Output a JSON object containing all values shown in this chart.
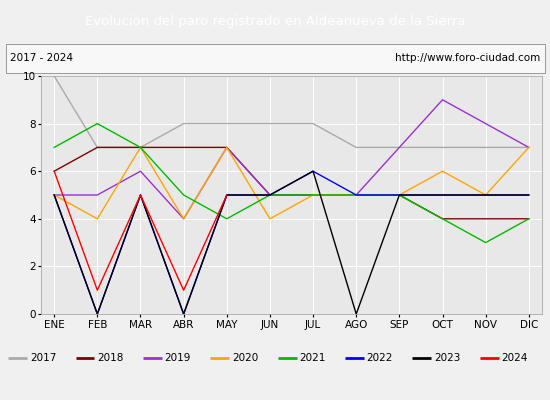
{
  "title": "Evolucion del paro registrado en Aldeanueva de la Sierra",
  "title_color": "#ffffff",
  "title_bg_color": "#5b9bd5",
  "subtitle_left": "2017 - 2024",
  "subtitle_right": "http://www.foro-ciudad.com",
  "months": [
    "ENE",
    "FEB",
    "MAR",
    "ABR",
    "MAY",
    "JUN",
    "JUL",
    "AGO",
    "SEP",
    "OCT",
    "NOV",
    "DIC"
  ],
  "ylim": [
    0,
    10
  ],
  "yticks": [
    0,
    2,
    4,
    6,
    8,
    10
  ],
  "series": {
    "2017": {
      "color": "#aaaaaa",
      "data": [
        10,
        7,
        7,
        8,
        8,
        8,
        8,
        7,
        7,
        7,
        7,
        7
      ]
    },
    "2018": {
      "color": "#800000",
      "data": [
        6,
        7,
        7,
        7,
        7,
        5,
        5,
        5,
        5,
        4,
        4,
        4
      ]
    },
    "2019": {
      "color": "#9933cc",
      "data": [
        5,
        5,
        6,
        4,
        7,
        5,
        5,
        5,
        7,
        9,
        8,
        7
      ]
    },
    "2020": {
      "color": "#ffa500",
      "data": [
        5,
        4,
        7,
        4,
        7,
        4,
        5,
        5,
        5,
        6,
        5,
        7
      ]
    },
    "2021": {
      "color": "#00bb00",
      "data": [
        7,
        8,
        7,
        5,
        4,
        5,
        5,
        5,
        5,
        4,
        3,
        4
      ]
    },
    "2022": {
      "color": "#0000ff",
      "data": [
        5,
        0,
        5,
        0,
        5,
        5,
        6,
        5,
        5,
        5,
        5,
        5
      ]
    },
    "2023": {
      "color": "#000000",
      "data": [
        5,
        0,
        5,
        0,
        5,
        5,
        6,
        0,
        5,
        5,
        5,
        5
      ]
    },
    "2024": {
      "color": "#ff0000",
      "data": [
        6,
        1,
        5,
        1,
        5,
        null,
        null,
        null,
        null,
        null,
        null,
        null
      ]
    }
  },
  "bg_plot": "#e8e8e8",
  "bg_fig": "#f0f0f0",
  "grid_color": "#ffffff",
  "legend_bg": "#dddddd",
  "border_color": "#999999",
  "fig_width": 5.5,
  "fig_height": 4.0,
  "dpi": 100
}
